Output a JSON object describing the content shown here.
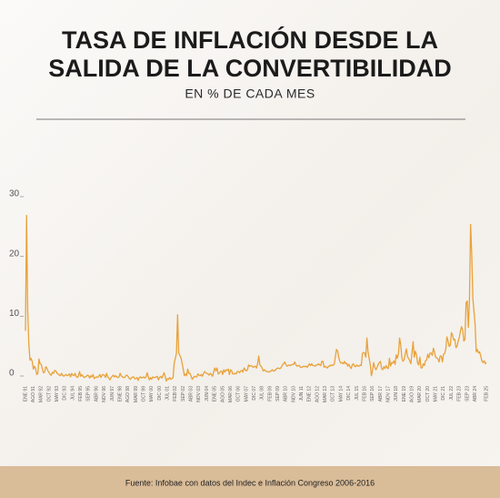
{
  "chart_data": {
    "type": "line",
    "title": [
      "TASA DE INFLACIÓN DESDE LA",
      "SALIDA DE LA CONVERTIBILIDAD"
    ],
    "subtitle": "EN % DE CADA MES",
    "source": "Fuente: Infobae con datos del Indec e Inflación Congreso 2006-2016",
    "categories": [
      "ENE 91",
      null,
      null,
      null,
      null,
      null,
      null,
      "AGO 91",
      null,
      null,
      null,
      null,
      null,
      null,
      "MAR 92",
      null,
      null,
      null,
      null,
      null,
      null,
      "OCT 92",
      null,
      null,
      null,
      null,
      null,
      null,
      "MAY 93",
      null,
      null,
      null,
      null,
      null,
      null,
      "DIC 93",
      null,
      null,
      null,
      null,
      null,
      null,
      "JUL 94",
      null,
      null,
      null,
      null,
      null,
      null,
      "FEB 95",
      null,
      null,
      null,
      null,
      null,
      null,
      "SEP 95",
      null,
      null,
      null,
      null,
      null,
      null,
      "ABR 96",
      null,
      null,
      null,
      null,
      null,
      null,
      "NOV 96",
      null,
      null,
      null,
      null,
      null,
      null,
      "JUN 97",
      null,
      null,
      null,
      null,
      null,
      null,
      "ENE 98",
      null,
      null,
      null,
      null,
      null,
      null,
      "AGO 98",
      null,
      null,
      null,
      null,
      null,
      null,
      "MAR 99",
      null,
      null,
      null,
      null,
      null,
      null,
      "OCT 99",
      null,
      null,
      null,
      null,
      null,
      null,
      "MAY 00",
      null,
      null,
      null,
      null,
      null,
      null,
      "DIC 00",
      null,
      null,
      null,
      null,
      null,
      null,
      "JUL 01",
      null,
      null,
      null,
      null,
      null,
      null,
      "FEB 02",
      null,
      null,
      null,
      null,
      null,
      null,
      "SEP 02",
      null,
      null,
      null,
      null,
      null,
      null,
      "ABR 03",
      null,
      null,
      null,
      null,
      null,
      null,
      "NOV 03",
      null,
      null,
      null,
      null,
      null,
      null,
      "JUN 04",
      null,
      null,
      null,
      null,
      null,
      null,
      "ENE 05",
      null,
      null,
      null,
      null,
      null,
      null,
      "AGO 05",
      null,
      null,
      null,
      null,
      null,
      null,
      "MAR 06",
      null,
      null,
      null,
      null,
      null,
      null,
      "OCT 06",
      null,
      null,
      null,
      null,
      null,
      null,
      "MAY 07",
      null,
      null,
      null,
      null,
      null,
      null,
      "DIC 07",
      null,
      null,
      null,
      null,
      null,
      null,
      "JUL 08",
      null,
      null,
      null,
      null,
      null,
      null,
      "FEB 09",
      null,
      null,
      null,
      null,
      null,
      null,
      "SEP 09",
      null,
      null,
      null,
      null,
      null,
      null,
      "ABR 10",
      null,
      null,
      null,
      null,
      null,
      null,
      "NOV 10",
      null,
      null,
      null,
      null,
      null,
      null,
      "JUN 11",
      null,
      null,
      null,
      null,
      null,
      null,
      "ENE 12",
      null,
      null,
      null,
      null,
      null,
      null,
      "AGO 12",
      null,
      null,
      null,
      null,
      null,
      null,
      "MAR 13",
      null,
      null,
      null,
      null,
      null,
      null,
      "OCT 13",
      null,
      null,
      null,
      null,
      null,
      null,
      "MAY 14",
      null,
      null,
      null,
      null,
      null,
      null,
      "DIC 14",
      null,
      null,
      null,
      null,
      null,
      null,
      "JUL 15",
      null,
      null,
      null,
      null,
      null,
      null,
      "FEB 16",
      null,
      null,
      null,
      null,
      null,
      null,
      "SEP 16",
      null,
      null,
      null,
      null,
      null,
      null,
      "ABR 17",
      null,
      null,
      null,
      null,
      null,
      null,
      "NOV 17",
      null,
      null,
      null,
      null,
      null,
      null,
      "JUN 18",
      null,
      null,
      null,
      null,
      null,
      null,
      "ENE 19",
      null,
      null,
      null,
      null,
      null,
      null,
      "AGO 19",
      null,
      null,
      null,
      null,
      null,
      null,
      "MAR 20",
      null,
      null,
      null,
      null,
      null,
      null,
      "OCT 20",
      null,
      null,
      null,
      null,
      null,
      null,
      "MAY 21",
      null,
      null,
      null,
      null,
      null,
      null,
      "DIC 21",
      null,
      null,
      null,
      null,
      null,
      null,
      "JUL 22",
      null,
      null,
      null,
      null,
      null,
      null,
      "FEB 23",
      null,
      null,
      null,
      null,
      null,
      null,
      "SEP 23",
      null,
      null,
      null,
      null,
      null,
      null,
      "ABR 24",
      null,
      null,
      null,
      null,
      null,
      null,
      null,
      null,
      null,
      "FEB 25"
    ],
    "values": [
      7.7,
      27.0,
      11.0,
      5.5,
      2.8,
      3.1,
      2.6,
      1.3,
      1.8,
      1.4,
      0.4,
      0.6,
      3.0,
      2.2,
      2.1,
      1.3,
      0.7,
      0.8,
      1.7,
      1.5,
      1.0,
      0.7,
      0.4,
      0.3,
      0.8,
      0.6,
      1.1,
      1.0,
      0.6,
      0.5,
      0.3,
      0.2,
      0.6,
      0.3,
      0.1,
      0.3,
      0.4,
      0.2,
      0.3,
      0.5,
      0.0,
      0.6,
      0.3,
      0.2,
      0.6,
      0.1,
      -0.1,
      0.1,
      0.9,
      0.1,
      0.4,
      0.1,
      -0.1,
      0.0,
      0.1,
      0.3,
      0.2,
      -0.2,
      0.2,
      0.0,
      0.4,
      -0.3,
      -0.1,
      0.0,
      -0.1,
      0.1,
      0.4,
      -0.1,
      0.3,
      0.4,
      0.3,
      -0.1,
      0.6,
      0.0,
      -0.2,
      -0.5,
      -0.1,
      0.1,
      0.3,
      0.0,
      0.2,
      0.0,
      -0.1,
      0.0,
      0.6,
      0.2,
      0.0,
      -0.1,
      -0.1,
      0.2,
      0.3,
      0.1,
      -0.2,
      -0.4,
      -0.2,
      0.0,
      0.0,
      -0.3,
      -0.3,
      -0.1,
      -0.6,
      -0.1,
      0.0,
      -0.2,
      -0.1,
      0.0,
      -0.2,
      0.0,
      0.7,
      0.0,
      -0.5,
      -0.1,
      -0.4,
      0.0,
      -0.1,
      -0.1,
      0.0,
      0.1,
      -0.5,
      -0.1,
      0.1,
      -0.2,
      0.2,
      0.7,
      0.1,
      -0.7,
      -0.3,
      -0.4,
      -0.1,
      -0.4,
      -0.3,
      -0.1,
      2.3,
      3.1,
      4.0,
      10.4,
      4.0,
      3.6,
      3.2,
      2.3,
      1.3,
      0.2,
      0.5,
      0.2,
      1.3,
      0.6,
      0.6,
      0.1,
      -0.4,
      -0.1,
      0.1,
      0.0,
      0.0,
      0.5,
      0.3,
      0.2,
      0.4,
      0.1,
      0.6,
      0.9,
      0.7,
      0.6,
      0.5,
      0.3,
      0.6,
      0.4,
      0.1,
      0.8,
      1.5,
      1.0,
      1.5,
      0.5,
      0.6,
      0.9,
      1.0,
      0.4,
      1.2,
      0.8,
      1.2,
      1.1,
      1.3,
      0.4,
      1.2,
      1.0,
      0.5,
      0.5,
      0.6,
      0.5,
      0.9,
      0.9,
      0.7,
      1.0,
      1.1,
      0.8,
      1.5,
      1.2,
      1.0,
      1.2,
      2.0,
      1.8,
      1.9,
      1.8,
      1.6,
      1.7,
      1.8,
      1.5,
      2.2,
      3.5,
      2.0,
      1.8,
      1.5,
      1.0,
      1.2,
      1.0,
      0.9,
      0.9,
      0.8,
      0.9,
      1.0,
      1.2,
      1.0,
      1.0,
      1.2,
      1.4,
      1.5,
      1.4,
      1.4,
      1.6,
      2.0,
      2.2,
      2.5,
      2.1,
      1.8,
      1.9,
      2.0,
      1.9,
      2.0,
      2.1,
      2.1,
      2.5,
      2.0,
      1.8,
      1.9,
      1.9,
      1.6,
      1.6,
      1.7,
      1.8,
      1.7,
      1.8,
      1.6,
      1.9,
      2.2,
      1.9,
      2.2,
      1.9,
      1.9,
      1.8,
      2.0,
      2.0,
      2.2,
      2.0,
      1.9,
      2.6,
      2.6,
      1.6,
      1.8,
      1.6,
      1.5,
      1.8,
      1.8,
      2.0,
      1.9,
      2.0,
      2.1,
      3.4,
      4.6,
      4.3,
      3.3,
      2.6,
      2.3,
      2.4,
      2.2,
      2.6,
      2.2,
      2.3,
      1.8,
      2.1,
      1.7,
      1.4,
      2.0,
      2.2,
      1.8,
      1.7,
      2.0,
      1.8,
      1.8,
      2.0,
      1.9,
      3.9,
      4.1,
      4.0,
      3.3,
      6.5,
      4.2,
      3.1,
      2.0,
      0.2,
      1.1,
      2.4,
      1.6,
      1.2,
      1.6,
      2.1,
      2.4,
      2.6,
      1.4,
      1.2,
      1.7,
      1.4,
      1.9,
      1.5,
      1.4,
      3.1,
      1.8,
      2.4,
      2.3,
      2.7,
      2.1,
      3.7,
      3.1,
      3.9,
      6.5,
      5.4,
      3.2,
      2.6,
      2.9,
      3.8,
      4.7,
      3.4,
      3.1,
      2.7,
      2.2,
      4.0,
      5.9,
      3.3,
      4.3,
      3.7,
      2.3,
      2.0,
      3.3,
      1.5,
      1.5,
      2.2,
      1.9,
      2.7,
      2.8,
      3.8,
      3.2,
      4.0,
      4.0,
      3.6,
      4.8,
      4.1,
      3.3,
      3.2,
      3.0,
      2.5,
      3.5,
      3.5,
      2.5,
      3.8,
      3.9,
      4.7,
      6.7,
      6.0,
      5.1,
      5.3,
      7.4,
      7.0,
      6.2,
      6.3,
      4.9,
      5.1,
      6.0,
      6.6,
      7.7,
      8.4,
      7.8,
      6.0,
      6.3,
      12.4,
      12.7,
      8.3,
      12.8,
      25.5,
      20.6,
      13.2,
      11.0,
      8.8,
      4.2,
      4.6,
      4.0,
      4.2,
      3.5,
      2.7,
      2.4,
      2.7,
      2.2,
      2.4
    ],
    "color": "#e8a23a",
    "ylim": [
      -1,
      30
    ],
    "yticks": [
      0,
      10,
      20,
      30
    ],
    "grid": false
  }
}
